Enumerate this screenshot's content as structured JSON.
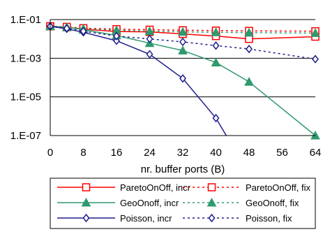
{
  "chart_data": {
    "type": "line",
    "xlabel": "nr. buffer ports (B)",
    "x": [
      0,
      4,
      8,
      16,
      24,
      32,
      40,
      48,
      64
    ],
    "xticks": [
      "0",
      "8",
      "16",
      "24",
      "32",
      "40",
      "48",
      "56",
      "64"
    ],
    "xlim": [
      0,
      64
    ],
    "yscale": "log",
    "ylim": [
      1e-07,
      0.1
    ],
    "yticks": [
      1e-07,
      1e-05,
      0.001,
      0.1
    ],
    "yticklabels": [
      "1.E-07",
      "1.E-05",
      "1.E-03",
      "1.E-01"
    ],
    "grid": "horizontal",
    "legend_position": "bottom",
    "series": [
      {
        "name": "ParetoOnOff, incr",
        "color": "#ff0000",
        "dash": "solid",
        "marker": "square",
        "x": [
          0,
          4,
          8,
          16,
          24,
          32,
          40,
          48,
          64
        ],
        "values": [
          0.045,
          0.04,
          0.032,
          0.024,
          0.023,
          0.018,
          0.014,
          0.01,
          0.013
        ]
      },
      {
        "name": "ParetoOnOff, fix",
        "color": "#ff0000",
        "dash": "dotted",
        "marker": "square",
        "x": [
          0,
          4,
          8,
          16,
          24,
          32,
          40,
          48,
          64
        ],
        "values": [
          0.045,
          0.042,
          0.036,
          0.032,
          0.03,
          0.028,
          0.027,
          0.026,
          0.025
        ]
      },
      {
        "name": "GeoOnoff, incr",
        "color": "#2e9a6e",
        "dash": "solid",
        "marker": "triangle",
        "x": [
          0,
          4,
          8,
          16,
          24,
          32,
          40,
          48,
          64
        ],
        "values": [
          0.045,
          0.04,
          0.03,
          0.015,
          0.006,
          0.0025,
          0.0006,
          6e-05,
          1e-07
        ]
      },
      {
        "name": "GeoOnoff, fix",
        "color": "#2e9a6e",
        "dash": "dotted",
        "marker": "triangle",
        "x": [
          0,
          4,
          8,
          16,
          24,
          32,
          40,
          48,
          64
        ],
        "values": [
          0.045,
          0.04,
          0.034,
          0.028,
          0.025,
          0.023,
          0.022,
          0.021,
          0.02
        ]
      },
      {
        "name": "Poisson, incr",
        "color": "#1f1f8c",
        "dash": "solid",
        "marker": "diamond",
        "x": [
          0,
          4,
          8,
          16,
          24,
          32,
          40,
          42.5
        ],
        "values": [
          0.045,
          0.033,
          0.022,
          0.008,
          0.0016,
          9e-05,
          8e-07,
          1e-07
        ]
      },
      {
        "name": "Poisson, fix",
        "color": "#1f1f8c",
        "dash": "dotted",
        "marker": "diamond",
        "x": [
          0,
          4,
          8,
          16,
          24,
          32,
          40,
          48,
          64
        ],
        "values": [
          0.045,
          0.035,
          0.025,
          0.014,
          0.01,
          0.007,
          0.0045,
          0.003,
          0.0009
        ],
        "marker_x": [
          0,
          4,
          8,
          16,
          24,
          32,
          40,
          48,
          64
        ]
      }
    ]
  }
}
